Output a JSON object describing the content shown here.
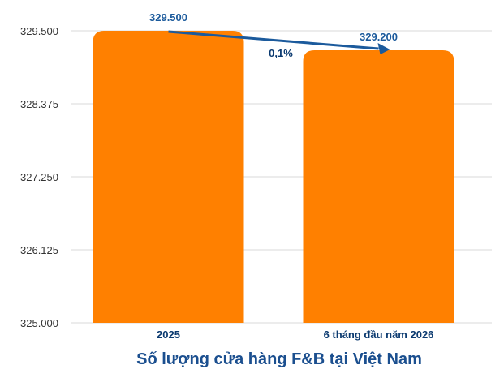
{
  "chart_data": {
    "type": "bar",
    "title": "Số lượng cửa hàng F&B tại Việt Nam",
    "categories": [
      "2025",
      "6 tháng đầu năm 2026"
    ],
    "values": [
      329500,
      329200
    ],
    "value_labels": [
      "329.500",
      "329.200"
    ],
    "ylim": [
      325000,
      329500
    ],
    "y_ticks": [
      325000,
      326125,
      327250,
      328375,
      329500
    ],
    "y_tick_labels": [
      "325.000",
      "326.125",
      "327.250",
      "328.375",
      "329.500"
    ],
    "grid": true,
    "change_annotation": "0,1%"
  },
  "colors": {
    "bar": "#ff8000",
    "arrow": "#1b5a9c",
    "grid": "#d9d9d9",
    "title": "#1b4f8f"
  }
}
